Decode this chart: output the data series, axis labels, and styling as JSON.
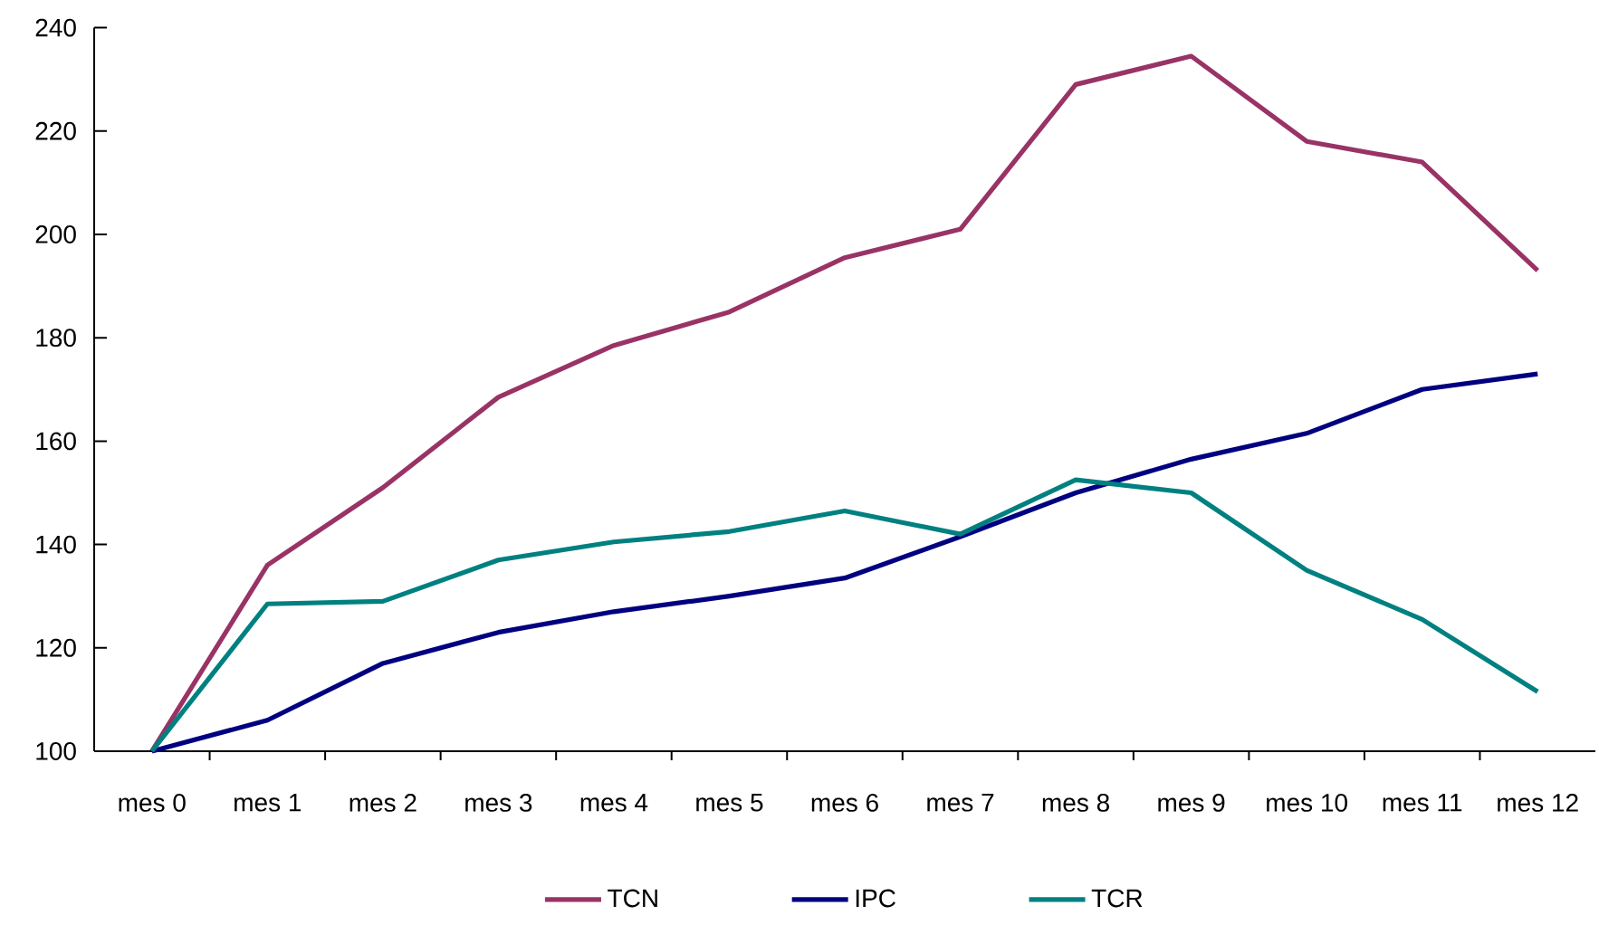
{
  "chart_data": {
    "type": "line",
    "categories": [
      "mes 0",
      "mes 1",
      "mes 2",
      "mes 3",
      "mes 4",
      "mes 5",
      "mes 6",
      "mes 7",
      "mes 8",
      "mes 9",
      "mes 10",
      "mes 11",
      "mes 12"
    ],
    "series": [
      {
        "name": "TCN",
        "color": "#993366",
        "values": [
          100,
          136,
          151,
          168.5,
          178.5,
          185,
          195.5,
          201,
          229,
          234.5,
          218,
          214,
          193
        ]
      },
      {
        "name": "IPC",
        "color": "#000080",
        "values": [
          100,
          106,
          117,
          123,
          127,
          130,
          133.5,
          141.5,
          150,
          156.5,
          161.5,
          170,
          173
        ]
      },
      {
        "name": "TCR",
        "color": "#008080",
        "values": [
          100,
          128.5,
          129,
          137,
          140.5,
          142.5,
          146.5,
          142,
          152.5,
          150,
          135,
          125.5,
          111.5
        ]
      }
    ],
    "ylim": [
      100,
      240
    ],
    "yticks": [
      100,
      120,
      140,
      160,
      180,
      200,
      220,
      240
    ],
    "legend": "bottom",
    "line_style": "solid"
  }
}
